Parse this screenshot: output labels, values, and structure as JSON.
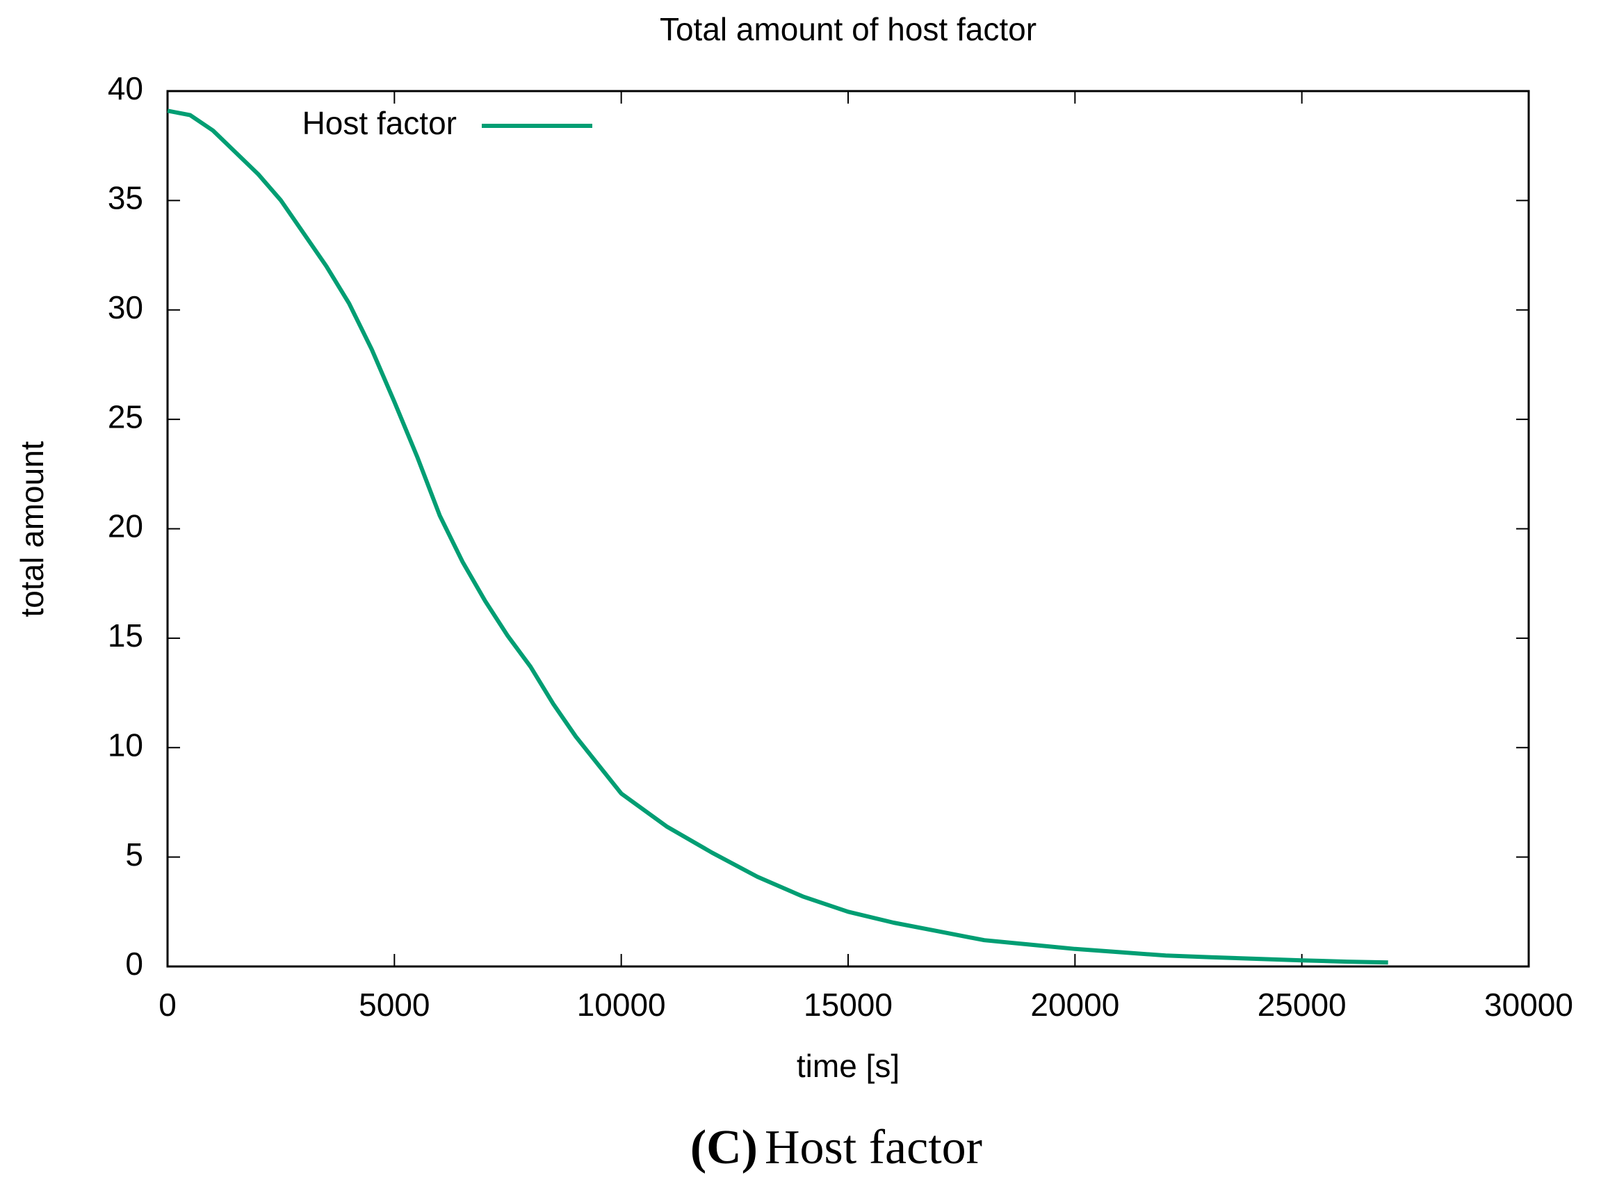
{
  "chart_data": {
    "type": "line",
    "title": "Total amount of host factor",
    "x_label": "time [s]",
    "y_label": "total amount",
    "x": [
      0,
      500,
      1000,
      1500,
      2000,
      2500,
      3000,
      3500,
      4000,
      4500,
      5000,
      5500,
      6000,
      6500,
      7000,
      7500,
      8000,
      8500,
      9000,
      9500,
      10000,
      11000,
      12000,
      13000,
      14000,
      15000,
      16000,
      17000,
      18000,
      19000,
      20000,
      21000,
      22000,
      23000,
      24000,
      25000,
      26000,
      26900
    ],
    "series": [
      {
        "name": "Host factor",
        "color": "#009e73",
        "values": [
          39.1,
          38.9,
          38.2,
          37.2,
          36.2,
          35.0,
          33.5,
          32.0,
          30.3,
          28.2,
          25.8,
          23.3,
          20.6,
          18.5,
          16.7,
          15.1,
          13.7,
          12.0,
          10.5,
          9.2,
          7.9,
          6.4,
          5.2,
          4.1,
          3.2,
          2.5,
          2.0,
          1.6,
          1.2,
          1.0,
          0.8,
          0.65,
          0.5,
          0.42,
          0.35,
          0.28,
          0.22,
          0.18
        ]
      }
    ],
    "xlim": [
      0,
      30000
    ],
    "xticks": [
      0,
      5000,
      10000,
      15000,
      20000,
      25000,
      30000
    ],
    "ylim": [
      0,
      40
    ],
    "yticks": [
      0,
      5,
      10,
      15,
      20,
      25,
      30,
      35,
      40
    ],
    "grid": false,
    "legend": "upper left"
  },
  "caption": {
    "label": "(C)",
    "text": "Host factor"
  }
}
